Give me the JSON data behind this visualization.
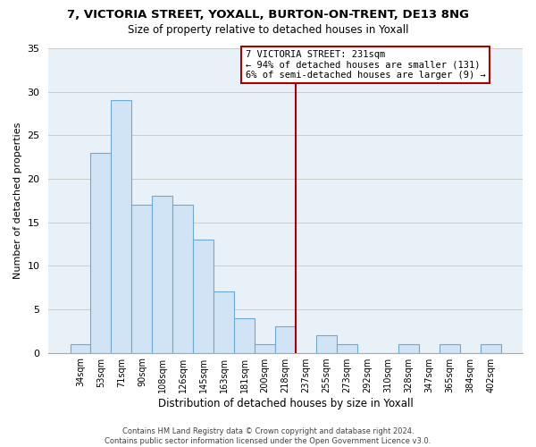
{
  "title": "7, VICTORIA STREET, YOXALL, BURTON-ON-TRENT, DE13 8NG",
  "subtitle": "Size of property relative to detached houses in Yoxall",
  "xlabel": "Distribution of detached houses by size in Yoxall",
  "ylabel": "Number of detached properties",
  "bar_color": "#d0e4f5",
  "bar_edge_color": "#6aaad4",
  "bins": [
    "34sqm",
    "53sqm",
    "71sqm",
    "90sqm",
    "108sqm",
    "126sqm",
    "145sqm",
    "163sqm",
    "181sqm",
    "200sqm",
    "218sqm",
    "237sqm",
    "255sqm",
    "273sqm",
    "292sqm",
    "310sqm",
    "328sqm",
    "347sqm",
    "365sqm",
    "384sqm",
    "402sqm"
  ],
  "values": [
    1,
    23,
    29,
    17,
    18,
    17,
    13,
    7,
    4,
    1,
    3,
    0,
    2,
    1,
    0,
    0,
    1,
    0,
    1,
    0,
    1
  ],
  "ylim": [
    0,
    35
  ],
  "yticks": [
    0,
    5,
    10,
    15,
    20,
    25,
    30,
    35
  ],
  "vline_color": "#aa0000",
  "annotation_title": "7 VICTORIA STREET: 231sqm",
  "annotation_line1": "← 94% of detached houses are smaller (131)",
  "annotation_line2": "6% of semi-detached houses are larger (9) →",
  "footer1": "Contains HM Land Registry data © Crown copyright and database right 2024.",
  "footer2": "Contains public sector information licensed under the Open Government Licence v3.0.",
  "background_color": "#ffffff",
  "grid_color": "#cccccc",
  "axes_bg_color": "#e8f0f8"
}
